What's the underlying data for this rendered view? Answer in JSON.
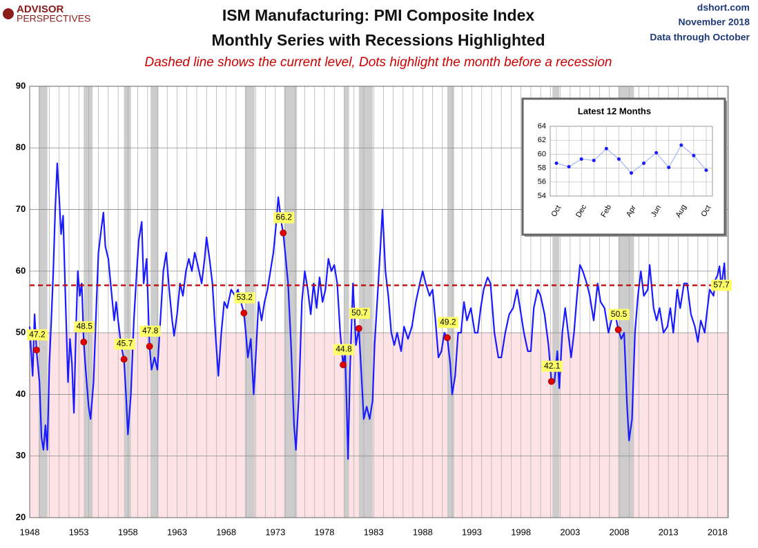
{
  "header": {
    "logo": [
      "ADVISOR",
      "PERSPECTIVES"
    ],
    "source": [
      "dshort.com",
      "November 2018",
      "Data through October"
    ]
  },
  "chart_data": [
    {
      "type": "line",
      "title": "ISM Manufacturing: PMI Composite Index",
      "subtitle": "Monthly Series with Recessions Highlighted",
      "annotation": "Dashed line shows the current level, Dots highlight the month before a recession",
      "color": "#1a1aff",
      "x": [
        1948.0,
        1948.3,
        1948.5,
        1948.7,
        1949.0,
        1949.2,
        1949.4,
        1949.6,
        1949.8,
        1950.0,
        1950.2,
        1950.4,
        1950.6,
        1950.8,
        1951.0,
        1951.2,
        1951.4,
        1951.6,
        1951.9,
        1952.1,
        1952.3,
        1952.5,
        1952.7,
        1952.9,
        1953.1,
        1953.3,
        1953.5,
        1953.7,
        1954.0,
        1954.2,
        1954.5,
        1954.8,
        1955.0,
        1955.3,
        1955.5,
        1955.7,
        1956.0,
        1956.3,
        1956.6,
        1956.8,
        1957.0,
        1957.3,
        1957.6,
        1957.8,
        1958.0,
        1958.3,
        1958.6,
        1958.9,
        1959.1,
        1959.4,
        1959.6,
        1959.9,
        1960.2,
        1960.4,
        1960.7,
        1961.0,
        1961.3,
        1961.6,
        1961.9,
        1962.2,
        1962.5,
        1962.7,
        1963.0,
        1963.3,
        1963.6,
        1963.9,
        1964.2,
        1964.5,
        1964.8,
        1965.1,
        1965.5,
        1965.8,
        1966.0,
        1966.3,
        1966.6,
        1966.9,
        1967.2,
        1967.5,
        1967.8,
        1968.1,
        1968.5,
        1968.9,
        1969.2,
        1969.5,
        1969.8,
        1970.0,
        1970.2,
        1970.5,
        1970.8,
        1971.0,
        1971.3,
        1971.6,
        1971.9,
        1972.2,
        1972.5,
        1972.8,
        1973.1,
        1973.3,
        1973.6,
        1973.8,
        1974.0,
        1974.3,
        1974.6,
        1974.9,
        1975.1,
        1975.4,
        1975.7,
        1976.0,
        1976.3,
        1976.6,
        1976.9,
        1977.2,
        1977.5,
        1977.8,
        1978.1,
        1978.4,
        1978.7,
        1979.0,
        1979.3,
        1979.6,
        1979.9,
        1980.1,
        1980.3,
        1980.4,
        1980.6,
        1980.9,
        1981.2,
        1981.5,
        1981.7,
        1982.0,
        1982.3,
        1982.6,
        1982.9,
        1983.1,
        1983.4,
        1983.7,
        1983.9,
        1984.2,
        1984.5,
        1984.8,
        1985.1,
        1985.4,
        1985.8,
        1986.1,
        1986.5,
        1986.9,
        1987.3,
        1987.7,
        1988.0,
        1988.3,
        1988.7,
        1989.0,
        1989.3,
        1989.6,
        1989.9,
        1990.2,
        1990.5,
        1990.8,
        1991.0,
        1991.3,
        1991.6,
        1991.9,
        1992.2,
        1992.5,
        1992.9,
        1993.3,
        1993.6,
        1993.9,
        1994.2,
        1994.6,
        1994.9,
        1995.3,
        1995.7,
        1996.0,
        1996.4,
        1996.8,
        1997.2,
        1997.6,
        1997.9,
        1998.3,
        1998.7,
        1999.0,
        1999.3,
        1999.7,
        2000.0,
        2000.4,
        2000.8,
        2001.1,
        2001.4,
        2001.7,
        2001.9,
        2002.2,
        2002.5,
        2002.8,
        2003.1,
        2003.4,
        2003.7,
        2004.0,
        2004.3,
        2004.7,
        2005.0,
        2005.4,
        2005.8,
        2006.1,
        2006.5,
        2006.9,
        2007.2,
        2007.6,
        2007.9,
        2008.2,
        2008.5,
        2008.8,
        2009.0,
        2009.3,
        2009.6,
        2009.9,
        2010.2,
        2010.5,
        2010.9,
        2011.1,
        2011.5,
        2011.8,
        2012.1,
        2012.5,
        2012.9,
        2013.2,
        2013.5,
        2013.9,
        2014.2,
        2014.6,
        2014.9,
        2015.3,
        2015.7,
        2016.0,
        2016.3,
        2016.7,
        2016.9,
        2017.2,
        2017.6,
        2017.8,
        2018.0,
        2018.2,
        2018.4,
        2018.6,
        2018.7,
        2018.8
      ],
      "values": [
        51,
        43,
        53,
        47,
        42,
        33,
        31,
        35,
        31,
        45,
        52,
        60,
        70,
        77.5,
        72,
        66,
        69,
        58,
        42,
        49,
        45,
        37,
        50,
        60,
        56,
        58,
        48.5,
        44,
        38,
        36,
        42,
        55,
        63,
        67,
        69.5,
        64,
        62,
        57,
        52,
        55,
        52,
        48,
        45.7,
        40,
        33.5,
        40,
        52,
        60,
        65,
        68,
        58,
        62,
        47.8,
        44,
        46,
        44,
        52,
        60,
        63,
        57,
        52,
        49.5,
        53,
        58,
        56,
        60,
        62,
        60,
        63,
        61,
        58,
        62,
        65.5,
        62,
        58,
        50,
        43,
        50,
        55,
        54,
        57,
        56,
        57,
        55,
        53.2,
        50,
        46,
        49,
        40,
        46,
        55,
        52,
        55,
        57,
        60,
        63,
        68,
        72,
        68,
        66.2,
        63,
        58,
        48,
        35,
        31,
        40,
        55,
        60,
        57,
        53,
        58,
        54,
        59,
        55,
        57,
        62,
        60,
        61,
        58,
        50,
        44.8,
        47,
        36,
        29.5,
        44,
        58,
        48,
        50.7,
        45,
        36,
        38,
        36,
        39,
        48,
        56,
        64,
        70,
        60,
        56,
        50,
        48,
        50,
        47,
        51,
        49,
        51,
        55,
        58,
        60,
        58,
        56,
        57,
        52,
        46,
        47,
        50,
        49.2,
        45,
        40,
        43,
        50,
        50,
        55,
        52,
        54,
        50,
        50,
        54,
        57,
        59,
        58,
        50,
        46,
        46,
        50,
        53,
        54,
        57,
        54,
        50,
        47,
        47,
        54,
        57,
        56,
        53,
        48,
        42.1,
        42,
        47,
        41,
        50,
        54,
        50,
        46,
        50,
        56,
        61,
        60,
        58,
        56,
        52,
        58,
        55,
        54,
        50,
        52,
        53,
        50.5,
        49,
        50,
        38,
        32.5,
        36,
        50,
        56,
        60,
        56,
        57,
        61,
        54,
        52,
        54,
        50,
        51,
        54,
        50,
        57,
        54,
        58,
        58,
        53,
        51,
        48.5,
        52,
        50,
        53,
        57,
        56,
        58.7,
        59.3,
        60.8,
        57.3,
        60.2,
        61.3,
        57.7
      ],
      "xlim": [
        1948,
        2019.1
      ],
      "xticks": [
        1948,
        1953,
        1958,
        1963,
        1968,
        1973,
        1978,
        1983,
        1988,
        1993,
        1998,
        2003,
        2008,
        2013,
        2018
      ],
      "x_minor_ticks": [
        1949,
        1950,
        1951,
        1952,
        1954,
        1955,
        1956,
        1957,
        1959,
        1960,
        1961,
        1962,
        1964,
        1965,
        1966,
        1967,
        1969,
        1970,
        1971,
        1972,
        1974,
        1975,
        1976,
        1977,
        1979,
        1980,
        1981,
        1982,
        1984,
        1985,
        1986,
        1987,
        1989,
        1990,
        1991,
        1992,
        1994,
        1995,
        1996,
        1997,
        1999,
        2000,
        2001,
        2002,
        2004,
        2005,
        2006,
        2007,
        2009,
        2010,
        2011,
        2012,
        2014,
        2015,
        2016,
        2017,
        2019
      ],
      "ylim": [
        20,
        90
      ],
      "yticks": [
        20,
        30,
        40,
        50,
        60,
        70,
        80,
        90
      ],
      "grid": true,
      "threshold": 50,
      "current_level": 57.7,
      "recessions": [
        [
          1948.9,
          1949.8
        ],
        [
          1953.5,
          1954.4
        ],
        [
          1957.6,
          1958.3
        ],
        [
          1960.3,
          1961.1
        ],
        [
          1969.9,
          1970.9
        ],
        [
          1973.9,
          1975.2
        ],
        [
          1980.0,
          1980.5
        ],
        [
          1981.5,
          1982.9
        ],
        [
          1990.5,
          1991.2
        ],
        [
          2001.2,
          2001.9
        ],
        [
          2007.9,
          2009.5
        ]
      ],
      "highlights": {
        "x": [
          1948.7,
          1953.5,
          1957.6,
          1960.2,
          1969.8,
          1973.8,
          1979.9,
          1981.5,
          1990.5,
          2001.1,
          2007.9
        ],
        "values": [
          47.2,
          48.5,
          45.7,
          47.8,
          53.2,
          66.2,
          44.8,
          50.7,
          49.2,
          42.1,
          50.5
        ]
      }
    },
    {
      "type": "line",
      "title": "Latest 12 Months",
      "color": "#1a1aff",
      "categories": [
        "Oct",
        null,
        "Dec",
        null,
        "Feb",
        null,
        "Apr",
        null,
        "Jun",
        null,
        "Aug",
        null,
        "Oct"
      ],
      "values": [
        58.7,
        58.2,
        59.3,
        59.1,
        60.8,
        59.3,
        57.3,
        58.7,
        60.2,
        58.1,
        61.3,
        59.8,
        57.7
      ],
      "ylim": [
        54,
        64
      ],
      "yticks": [
        54,
        56,
        58,
        60,
        62,
        64
      ],
      "grid": true
    }
  ]
}
